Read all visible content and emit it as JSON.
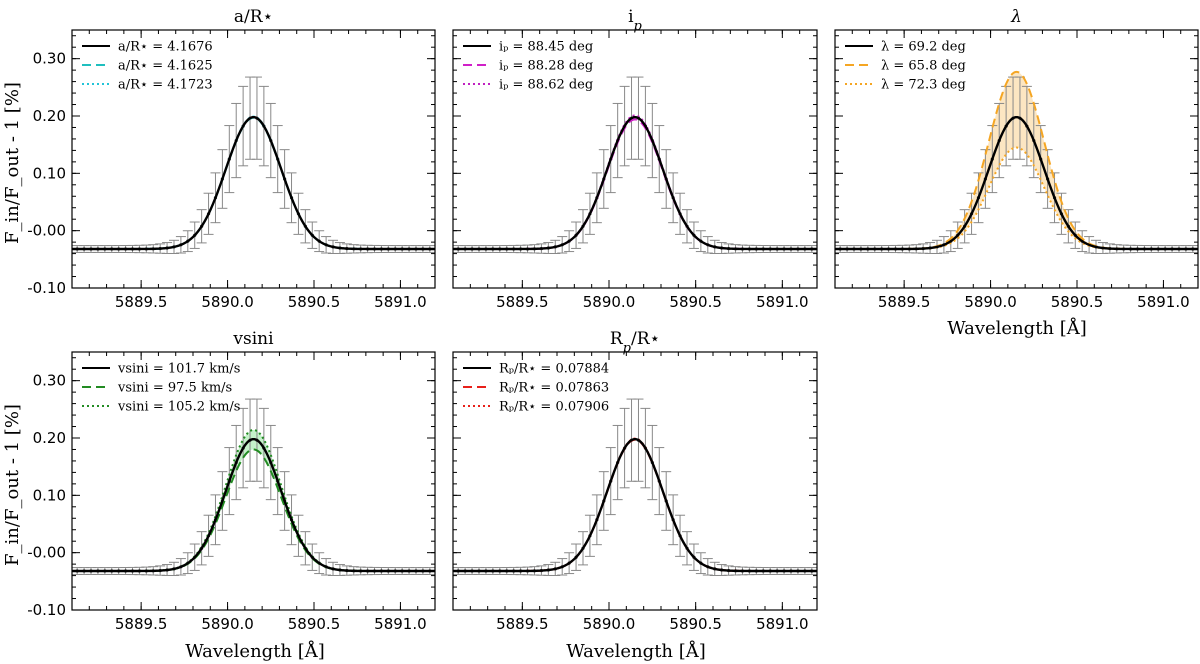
{
  "figure": {
    "ylabel": "F_in/F_out - 1 [%]",
    "xlabel": "Wavelength [Å]"
  },
  "chart_data": [
    {
      "type": "line",
      "title": "a/R⋆",
      "xlim": [
        5889.1,
        5891.2
      ],
      "ylim": [
        -0.1,
        0.35
      ],
      "xticks": [
        "5889.5",
        "5890.0",
        "5890.5",
        "5891.0"
      ],
      "yticks": [
        "-0.10",
        "-0.00",
        "0.10",
        "0.20",
        "0.30"
      ],
      "series": [
        {
          "label": "a/R⋆ = 4.1676",
          "color": "#000000",
          "style": "solid",
          "peak": 0.198
        },
        {
          "label": "a/R⋆ = 4.1625",
          "color": "#1fbfbf",
          "style": "dashed",
          "peak": 0.197
        },
        {
          "label": "a/R⋆ = 4.1723",
          "color": "#22c4d8",
          "style": "dotted",
          "peak": 0.199
        }
      ],
      "data": {
        "baseline": -0.032,
        "center": 5890.15,
        "peak": 0.198,
        "sigma": 0.16,
        "err_min": 0.13,
        "err_max": 0.27
      }
    },
    {
      "type": "line",
      "title": "i",
      "title_sub": "p",
      "xlim": [
        5889.1,
        5891.2
      ],
      "ylim": [
        -0.1,
        0.35
      ],
      "xticks": [
        "5889.5",
        "5890.0",
        "5890.5",
        "5891.0"
      ],
      "yticks": [
        "-0.10",
        "-0.00",
        "0.10",
        "0.20",
        "0.30"
      ],
      "series": [
        {
          "label": "iₚ = 88.45 deg",
          "color": "#000000",
          "style": "solid",
          "peak": 0.198
        },
        {
          "label": "iₚ = 88.28 deg",
          "color": "#d020c8",
          "style": "dashed",
          "peak": 0.194
        },
        {
          "label": "iₚ = 88.62 deg",
          "color": "#c020c0",
          "style": "dotted",
          "peak": 0.201
        }
      ],
      "data": {
        "baseline": -0.032,
        "center": 5890.15,
        "peak": 0.198,
        "sigma": 0.16,
        "err_min": 0.13,
        "err_max": 0.27
      }
    },
    {
      "type": "line",
      "title": "λ",
      "xlim": [
        5889.1,
        5891.2
      ],
      "ylim": [
        -0.1,
        0.35
      ],
      "xticks": [
        "5889.5",
        "5890.0",
        "5890.5",
        "5891.0"
      ],
      "yticks": [
        "-0.10",
        "-0.00",
        "0.10",
        "0.20",
        "0.30"
      ],
      "series": [
        {
          "label": "λ = 69.2 deg",
          "color": "#000000",
          "style": "solid",
          "peak": 0.198
        },
        {
          "label": "λ = 65.8 deg",
          "color": "#f5a623",
          "style": "dashed",
          "peak": 0.277
        },
        {
          "label": "λ = 72.3 deg",
          "color": "#f5a623",
          "style": "dotted",
          "peak": 0.145
        }
      ],
      "fill": {
        "color": "#f5a623",
        "between": [
          1,
          2
        ]
      },
      "data": {
        "baseline": -0.032,
        "center": 5890.15,
        "peak": 0.198,
        "sigma": 0.16,
        "err_min": 0.13,
        "err_max": 0.27
      }
    },
    {
      "type": "line",
      "title": "vsini",
      "xlim": [
        5889.1,
        5891.2
      ],
      "ylim": [
        -0.1,
        0.35
      ],
      "xticks": [
        "5889.5",
        "5890.0",
        "5890.5",
        "5891.0"
      ],
      "yticks": [
        "-0.10",
        "-0.00",
        "0.10",
        "0.20",
        "0.30"
      ],
      "series": [
        {
          "label": "vsini = 101.7 km/s",
          "color": "#000000",
          "style": "solid",
          "peak": 0.198
        },
        {
          "label": "vsini = 97.5 km/s",
          "color": "#228b22",
          "style": "dashed",
          "peak": 0.18
        },
        {
          "label": "vsini = 105.2 km/s",
          "color": "#228b22",
          "style": "dotted",
          "peak": 0.214
        }
      ],
      "fill": {
        "color": "#2ecc40",
        "between": [
          1,
          2
        ]
      },
      "data": {
        "baseline": -0.032,
        "center": 5890.15,
        "peak": 0.198,
        "sigma": 0.16,
        "err_min": 0.13,
        "err_max": 0.27
      }
    },
    {
      "type": "line",
      "title": "R",
      "title_sub": "p",
      "title_suffix": "/R⋆",
      "xlim": [
        5889.1,
        5891.2
      ],
      "ylim": [
        -0.1,
        0.35
      ],
      "xticks": [
        "5889.5",
        "5890.0",
        "5890.5",
        "5891.0"
      ],
      "yticks": [
        "-0.10",
        "-0.00",
        "0.10",
        "0.20",
        "0.30"
      ],
      "series": [
        {
          "label": "Rₚ/R⋆ = 0.07884",
          "color": "#000000",
          "style": "solid",
          "peak": 0.198
        },
        {
          "label": "Rₚ/R⋆ = 0.07863",
          "color": "#e8201a",
          "style": "dashed",
          "peak": 0.197
        },
        {
          "label": "Rₚ/R⋆ = 0.07906",
          "color": "#e8201a",
          "style": "dotted",
          "peak": 0.199
        }
      ],
      "data": {
        "baseline": -0.032,
        "center": 5890.15,
        "peak": 0.198,
        "sigma": 0.16,
        "err_min": 0.13,
        "err_max": 0.27
      }
    }
  ]
}
